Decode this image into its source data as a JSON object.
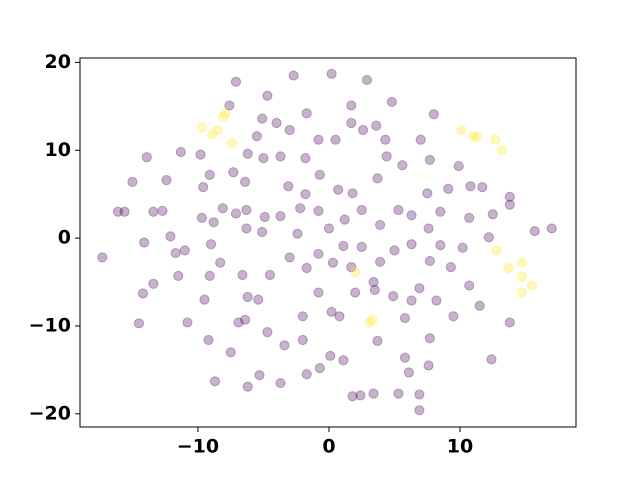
{
  "chart_data": {
    "type": "scatter",
    "xlim": [
      -19.0,
      18.85
    ],
    "ylim": [
      -21.5,
      20.5
    ],
    "xticks": [
      {
        "value": -10,
        "label": "−10"
      },
      0,
      10
    ],
    "yticks": [
      {
        "value": -20,
        "label": "−20"
      },
      {
        "value": -10,
        "label": "−10"
      },
      0,
      10,
      20
    ],
    "grid": false,
    "alpha": 0.3,
    "series": [
      {
        "color": "#440154",
        "x": [
          -17.3,
          -16.1,
          -15.6,
          -15.0,
          -13.9,
          -13.4,
          -12.7,
          -12.4,
          -11.3,
          -14.1,
          -12.1,
          -11.7,
          -11.0,
          -11.5,
          -13.4,
          -14.2,
          -14.5,
          -10.8,
          -9.5,
          -9.2,
          -8.7,
          -7.5,
          -6.2,
          -5.3,
          -3.7,
          -2.7,
          0.2,
          2.9,
          -7.1,
          -4.7,
          -1.7,
          1.7,
          4.8,
          8.0,
          -7.6,
          -9.8,
          -9.1,
          -9.6,
          -8.1,
          -8.8,
          -9.7,
          -9.0,
          -8.3,
          -9.1,
          -7.3,
          -6.4,
          -5.5,
          -5.0,
          -3.7,
          -3.1,
          -1.8,
          -0.7,
          0.7,
          1.8,
          3.7,
          4.4,
          5.6,
          7.0,
          7.7,
          9.9,
          9.1,
          10.8,
          11.7,
          10.7,
          12.5,
          13.8,
          13.8,
          10.2,
          12.2,
          15.7,
          17.0,
          9.3,
          10.7,
          11.5,
          13.8,
          12.4,
          9.5,
          8.2,
          7.7,
          5.8,
          6.1,
          5.3,
          6.9,
          7.6,
          6.9,
          1.8,
          3.4,
          2.4,
          -1.7,
          -0.7,
          0.1,
          1.1,
          -2.0,
          -3.4,
          -4.7,
          -6.4,
          -5.4,
          -6.9,
          -6.2,
          -6.6,
          -4.5,
          -3.0,
          -0.8,
          -2.0,
          0.2,
          0.8,
          2.0,
          3.7,
          3.5,
          4.9,
          6.3,
          5.8,
          6.9,
          8.5,
          7.7,
          6.3,
          5.0,
          3.9,
          2.5,
          1.1,
          -0.8,
          -1.7,
          0.0,
          -2.4,
          -3.7,
          -5.1,
          -4.9,
          -6.3,
          -7.1,
          -6.3,
          -2.2,
          -0.8,
          1.2,
          2.5,
          3.9,
          5.3,
          6.3,
          7.6,
          8.5,
          7.5,
          2.6,
          3.6,
          4.3,
          0.5,
          1.7,
          -4.0,
          -3.0,
          -0.8,
          -1.8,
          -5.1,
          -6.2,
          0.3,
          3.4,
          1.7
        ],
        "y": [
          -2.2,
          3.0,
          3.0,
          6.4,
          9.2,
          3.0,
          3.1,
          6.6,
          9.8,
          -0.5,
          0.2,
          -1.7,
          -1.4,
          -4.3,
          -5.2,
          -6.3,
          -9.7,
          -9.6,
          -7.0,
          -11.6,
          -16.3,
          -13.0,
          -16.9,
          -15.6,
          -16.5,
          18.5,
          18.7,
          18.0,
          17.8,
          16.2,
          14.2,
          15.1,
          15.5,
          14.1,
          15.1,
          9.5,
          7.2,
          5.8,
          3.4,
          1.8,
          2.3,
          -0.7,
          -2.8,
          -4.3,
          7.5,
          6.4,
          11.6,
          9.1,
          9.3,
          5.9,
          5.0,
          7.2,
          5.5,
          5.1,
          6.8,
          9.3,
          8.3,
          11.2,
          8.9,
          8.2,
          5.6,
          5.9,
          5.8,
          2.3,
          2.7,
          4.7,
          3.8,
          -1.1,
          0.1,
          0.8,
          1.1,
          -3.3,
          -5.4,
          -7.7,
          -9.6,
          -13.8,
          -8.9,
          -7.1,
          -11.4,
          -13.6,
          -15.3,
          -17.7,
          -17.8,
          -14.5,
          -19.6,
          -18.0,
          -17.7,
          -17.9,
          -15.5,
          -14.8,
          -13.4,
          -13.9,
          -11.6,
          -12.2,
          -10.7,
          -9.3,
          -7.0,
          -9.6,
          -6.7,
          -4.2,
          -4.2,
          -2.2,
          -6.2,
          -8.9,
          -8.4,
          -8.9,
          -6.2,
          -11.7,
          -5.9,
          -6.6,
          -7.1,
          -9.1,
          -5.7,
          -0.8,
          -2.6,
          -0.7,
          -1.4,
          -2.7,
          -1.0,
          -0.9,
          -1.8,
          -3.4,
          1.1,
          0.5,
          2.5,
          0.7,
          2.4,
          1.1,
          2.8,
          3.2,
          3.4,
          3.1,
          2.1,
          3.2,
          1.5,
          3.2,
          2.6,
          1.1,
          3.0,
          5.1,
          12.3,
          12.8,
          11.2,
          11.2,
          13.1,
          13.1,
          12.3,
          11.2,
          9.1,
          13.6,
          9.6,
          -2.8,
          -5.0,
          -3.3
        ]
      },
      {
        "color": "#fde725",
        "x": [
          -9.7,
          -8.9,
          -8.5,
          -8.1,
          -7.9,
          -7.4,
          10.1,
          11.0,
          11.3,
          12.7,
          13.2,
          2.0,
          3.1,
          3.3,
          12.8,
          13.7,
          14.7,
          14.7,
          14.7,
          15.5
        ],
        "y": [
          12.6,
          11.8,
          12.3,
          13.8,
          14.2,
          10.8,
          12.3,
          11.6,
          11.5,
          11.2,
          10.0,
          -3.9,
          -9.6,
          -9.3,
          -1.4,
          -3.4,
          -2.8,
          -4.4,
          -6.2,
          -5.4
        ]
      }
    ]
  }
}
